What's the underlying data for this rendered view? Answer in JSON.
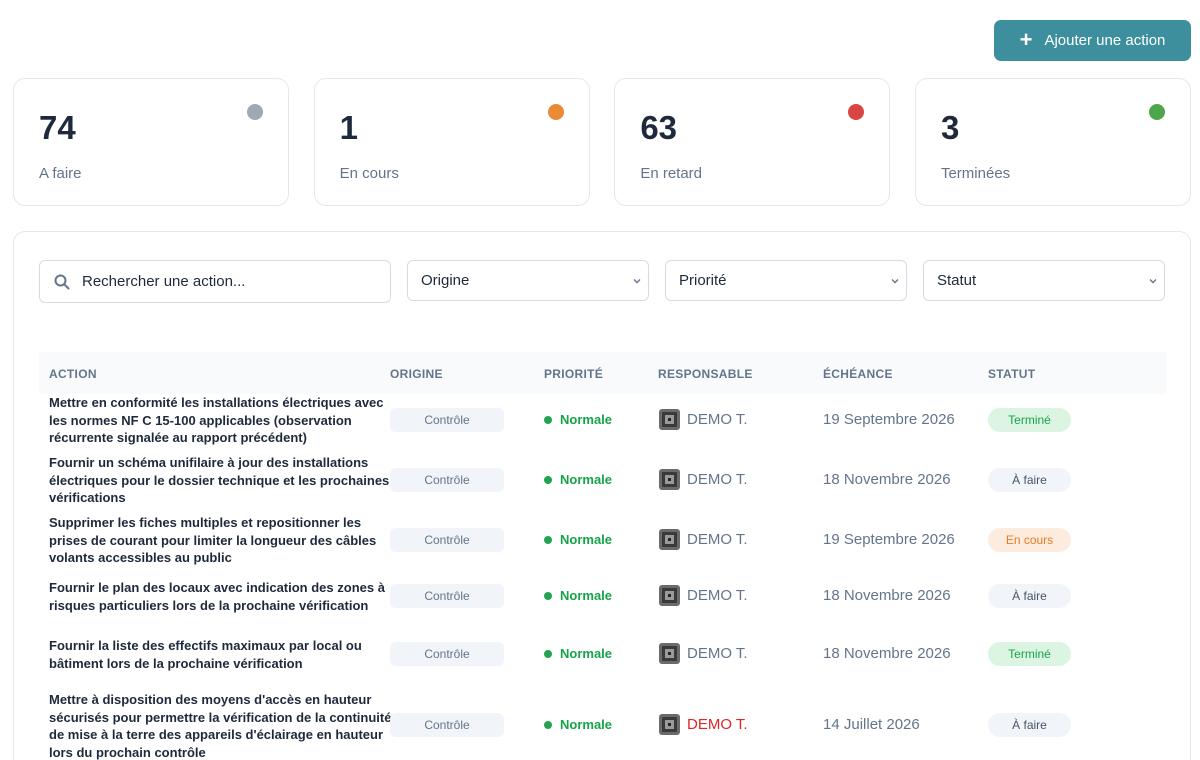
{
  "header": {
    "add_button_label": "Ajouter une action",
    "add_icon": "plus-icon"
  },
  "stats": [
    {
      "value": "74",
      "label": "A faire",
      "color": "#a0a8b6"
    },
    {
      "value": "1",
      "label": "En cours",
      "color": "#ea8a35"
    },
    {
      "value": "63",
      "label": "En retard",
      "color": "#d94444"
    },
    {
      "value": "3",
      "label": "Terminées",
      "color": "#4ea64c"
    }
  ],
  "filters": {
    "search_placeholder": "Rechercher une action...",
    "origine": "Origine",
    "priorite": "Priorité",
    "statut": "Statut"
  },
  "table": {
    "headers": [
      "ACTION",
      "ORIGINE",
      "PRIORITÉ",
      "RESPONSABLE",
      "ÉCHÉANCE",
      "STATUT"
    ],
    "rows": [
      {
        "action": "Mettre en conformité les installations électriques avec les normes NF C 15-100 applicables (observation récurrente signalée au rapport précédent)",
        "origine": "Contrôle",
        "priorite": "Normale",
        "responsable": "DEMO T.",
        "echeance": "19 Septembre 2026",
        "statut": "Terminé"
      },
      {
        "action": "Fournir un schéma unifilaire à jour des installations électriques pour le dossier technique et les prochaines vérifications",
        "origine": "Contrôle",
        "priorite": "Normale",
        "responsable": "DEMO T.",
        "echeance": "18 Novembre 2026",
        "statut": "À faire"
      },
      {
        "action": "Supprimer les fiches multiples et repositionner les prises de courant pour limiter la longueur des câbles volants accessibles au public",
        "origine": "Contrôle",
        "priorite": "Normale",
        "responsable": "DEMO T.",
        "echeance": "19 Septembre 2026",
        "statut": "En cours"
      },
      {
        "action": "Fournir le plan des locaux avec indication des zones à risques particuliers lors de la prochaine vérification",
        "origine": "Contrôle",
        "priorite": "Normale",
        "responsable": "DEMO T.",
        "echeance": "18 Novembre 2026",
        "statut": "À faire"
      },
      {
        "action": "Fournir la liste des effectifs maximaux par local ou bâtiment lors de la prochaine vérification",
        "origine": "Contrôle",
        "priorite": "Normale",
        "responsable": "DEMO T.",
        "echeance": "18 Novembre 2026",
        "statut": "Terminé"
      },
      {
        "action": "Mettre à disposition des moyens d'accès en hauteur sécurisés pour permettre la vérification de la continuité de mise à la terre des appareils d'éclairage en hauteur lors du prochain contrôle",
        "origine": "Contrôle",
        "priorite": "Normale",
        "responsable": "DEMO T.",
        "echeance": "14 Juillet 2026",
        "statut": "À faire"
      }
    ]
  }
}
